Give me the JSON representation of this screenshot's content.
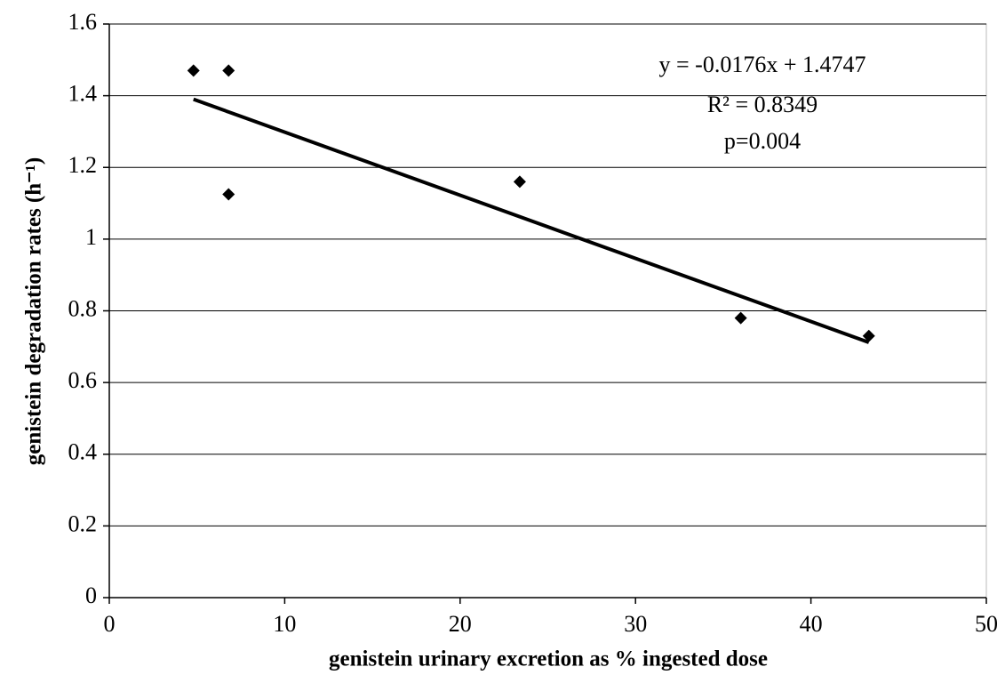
{
  "chart_data": {
    "type": "scatter",
    "x_label": "genistein urinary excretion as % ingested dose",
    "y_label": "genistein degradation rates (h⁻¹)",
    "x": [
      4.8,
      6.8,
      6.8,
      23.4,
      36,
      43.3
    ],
    "values": [
      1.47,
      1.47,
      1.125,
      1.16,
      0.78,
      0.73
    ],
    "color": "#000000",
    "trendline": {
      "x": [
        4.8,
        43.3
      ],
      "values": [
        1.39,
        0.712
      ]
    },
    "annotations": [
      "y = -0.0176x + 1.4747",
      "R² = 0.8349",
      "p=0.004"
    ],
    "xlim": [
      0,
      50
    ],
    "xticks": [
      0,
      10,
      20,
      30,
      40,
      50
    ],
    "ylim": [
      0,
      1.6
    ],
    "yticks": [
      0,
      0.2,
      0.4,
      0.6,
      0.8,
      1,
      1.2,
      1.4,
      1.6
    ],
    "grid": true
  }
}
